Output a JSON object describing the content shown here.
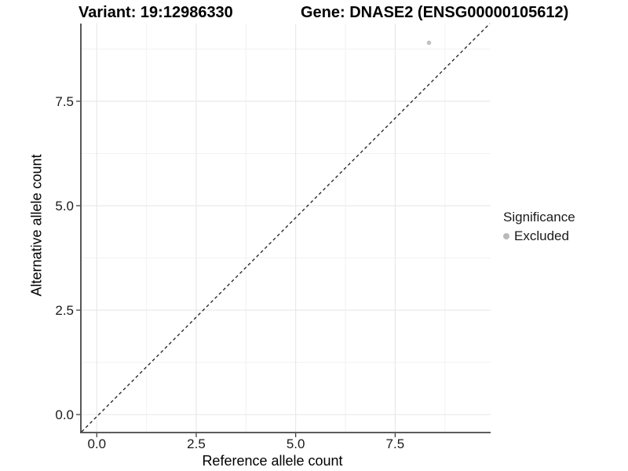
{
  "titles": {
    "variant": "Variant: 19:12986330",
    "gene": "Gene: DNASE2 (ENSG00000105612)"
  },
  "axes": {
    "x_label": "Reference allele count",
    "y_label": "Alternative allele count"
  },
  "legend": {
    "title": "Significance",
    "items": [
      {
        "label": "Excluded",
        "color": "#b9b9b9"
      }
    ]
  },
  "chart_data": {
    "type": "scatter",
    "title": "",
    "xlabel": "Reference allele count",
    "ylabel": "Alternative allele count",
    "x_ticks": [
      0.0,
      2.5,
      5.0,
      7.5
    ],
    "y_ticks": [
      0.0,
      2.5,
      5.0,
      7.5
    ],
    "tick_format_decimals": 1,
    "xlim": [
      -0.4,
      9.9
    ],
    "ylim": [
      -0.43,
      9.36
    ],
    "grid": "major+minor",
    "legend_position": "right",
    "series": [
      {
        "name": "Excluded",
        "color": "#c1c1c1",
        "points": [
          {
            "x": 8.35,
            "y": 8.9
          }
        ]
      }
    ],
    "reference_line": {
      "style": "dashed",
      "slope": 1,
      "intercept": 0,
      "color": "#1a1a1a"
    },
    "colors": {
      "axis_line": "#454545",
      "tick_mark": "#333333",
      "grid_major": "#e7e7e7",
      "grid_minor": "#f2f2f2",
      "background": "#ffffff"
    }
  }
}
